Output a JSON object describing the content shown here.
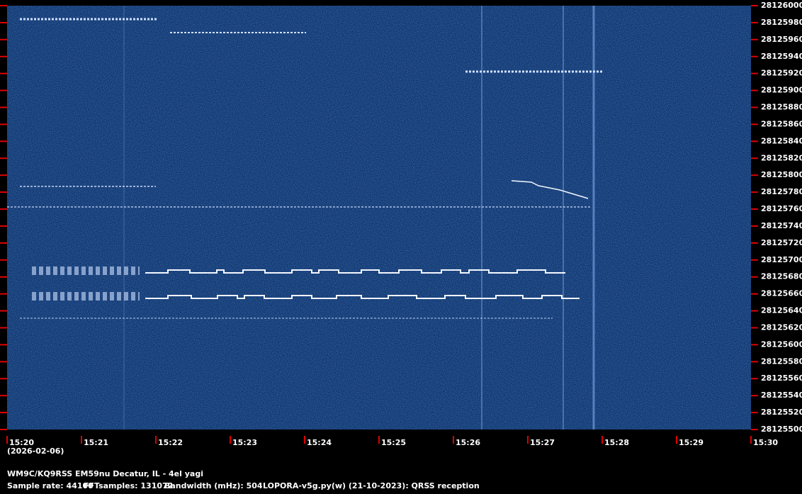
{
  "chart_data": {
    "type": "spectrogram",
    "date": "(2026-02-06)",
    "categories": [
      "15:20",
      "15:21",
      "15:22",
      "15:23",
      "15:24",
      "15:25",
      "15:26",
      "15:27",
      "15:28",
      "15:29",
      "15:30"
    ],
    "ylim": [
      28125500,
      28126000
    ],
    "yticks": [
      28125500,
      28125520,
      28125540,
      28125560,
      28125580,
      28125600,
      28125620,
      28125640,
      28125660,
      28125680,
      28125700,
      28125720,
      28125740,
      28125760,
      28125780,
      28125800,
      28125820,
      28125840,
      28125860,
      28125880,
      28125900,
      28125920,
      28125940,
      28125960,
      28125980,
      28126000
    ],
    "station": "WM9C/KQ9RSS EM59nu Decatur, IL - 4el yagi",
    "info": [
      "Sample rate: 44100",
      "FFTsamples: 131072",
      "Bandwidth (mHz): 504",
      "LOPORA-v5g.py(w) (21-10-2023): QRSS reception"
    ],
    "tick_color": "#e00000"
  }
}
